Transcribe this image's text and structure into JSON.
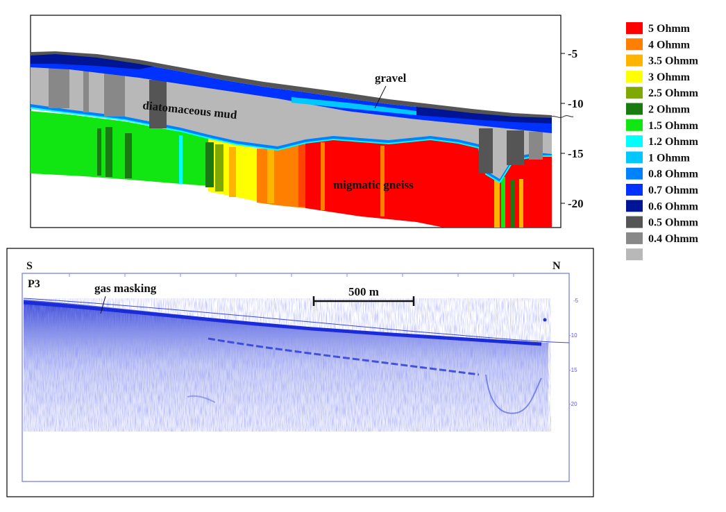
{
  "resistivity_section": {
    "depth_ticks": [
      "-5",
      "-10",
      "-15",
      "-20"
    ],
    "labels": {
      "gravel": "gravel",
      "mud": "diatomaceous mud",
      "gneiss": "migmatic gneiss"
    }
  },
  "legend": [
    {
      "label": "5 Ohmm",
      "color": "#ff0000"
    },
    {
      "label": "4 Ohmm",
      "color": "#ff7f00"
    },
    {
      "label": "3.5 Ohmm",
      "color": "#ffb400"
    },
    {
      "label": "3 Ohmm",
      "color": "#ffff00"
    },
    {
      "label": "2.5 Ohmm",
      "color": "#7fa800"
    },
    {
      "label": "2 Ohmm",
      "color": "#1a7a12"
    },
    {
      "label": "1.5 Ohmm",
      "color": "#12e612"
    },
    {
      "label": "1.2 Ohmm",
      "color": "#00ffff"
    },
    {
      "label": "1 Ohmm",
      "color": "#00c8ff"
    },
    {
      "label": "0.8 Ohmm",
      "color": "#0082ff"
    },
    {
      "label": "0.7 Ohmm",
      "color": "#0032ff"
    },
    {
      "label": "0.6 Ohmm",
      "color": "#001496"
    },
    {
      "label": "0.5 Ohmm",
      "color": "#555555"
    },
    {
      "label": "0.4 Ohmm",
      "color": "#888888"
    },
    {
      "label": "",
      "color": "#b8b8b8"
    }
  ],
  "seismic_profile": {
    "south": "S",
    "north": "N",
    "profile_id": "P3",
    "gas_label": "gas masking",
    "scale_label": "500 m",
    "depth_ticks": [
      "-5",
      "-10",
      "-15",
      "-20"
    ]
  }
}
